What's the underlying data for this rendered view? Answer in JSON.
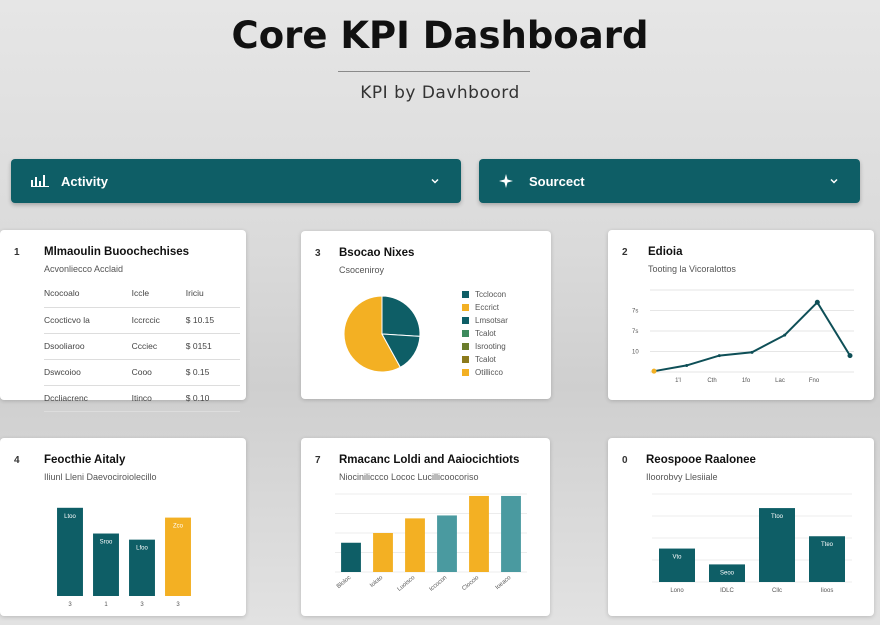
{
  "header": {
    "title": "Core KPI Dashboard",
    "subtitle": "KPI by Davhboord"
  },
  "filters": [
    {
      "label": "Activity",
      "icon": "bar-chart-icon"
    },
    {
      "label": "Sourcect",
      "icon": "sparkle-icon"
    }
  ],
  "colors": {
    "teal": "#0e5e66",
    "gold": "#f3b023",
    "teal_light": "#4a9aa0"
  },
  "cards": {
    "table_card": {
      "number": "1",
      "title": "Mlmaoulin Buoochechises",
      "subtitle": "Acvonliecco Acclaid",
      "columns": [
        "Ncocoalo",
        "Iccle",
        "Iriciu"
      ],
      "rows": [
        [
          "Ccocticvo la",
          "Iccrccic",
          "$ 10.15"
        ],
        [
          "Dsooliaroo",
          "Ccciec",
          "$ 0151"
        ],
        [
          "Dswcoioo",
          "Cooo",
          "$ 0.15"
        ],
        [
          "Dccliacrenc",
          "Itinco",
          "$ 0.10"
        ]
      ]
    },
    "pie_card": {
      "number": "3",
      "title": "Bsocao Nixes",
      "subtitle": "Csoceniroy",
      "legend": [
        {
          "label": "Tcclocon",
          "color": "#0e5e66"
        },
        {
          "label": "Eccrict",
          "color": "#f3b023"
        },
        {
          "label": "Lmsotsar",
          "color": "#0e5e66"
        },
        {
          "label": "Tcalot",
          "color": "#3d8a5c"
        },
        {
          "label": "Isrooting",
          "color": "#6b7d2c"
        },
        {
          "label": "Tcalot",
          "color": "#8c7a1c"
        },
        {
          "label": "Otillicco",
          "color": "#f3b023"
        }
      ]
    },
    "line_card": {
      "number": "2",
      "title": "Edioia",
      "subtitle": "Tooting la Vicoralottos"
    },
    "bar_card_1": {
      "number": "4",
      "title": "Feocthie Aitaly",
      "subtitle": "Iliunl Lleni Daevociroiolecillo"
    },
    "bar_card_2": {
      "number": "7",
      "title": "Rmacanc Loldi and Aaiocichtiots",
      "subtitle": "Niociniliccco Lococ Lucillicoocoriso"
    },
    "bar_card_3": {
      "number": "0",
      "title": "Reospooe Raalonee",
      "subtitle": "Iloorobvy Llesiiale"
    }
  },
  "chart_data": [
    {
      "type": "pie",
      "title": "Bsocao Nixes",
      "values": [
        58,
        26,
        16
      ],
      "colors": [
        "#f3b023",
        "#0e5e66",
        "#0e5e66"
      ]
    },
    {
      "type": "line",
      "title": "Edioia",
      "x": [
        1,
        2,
        3,
        4,
        5,
        6,
        7
      ],
      "y": [
        1,
        8,
        20,
        24,
        45,
        85,
        20
      ],
      "xticks": [
        "1'l",
        "Cth",
        "1fo",
        "Lac",
        "Fno"
      ],
      "yticks": [
        "",
        "7s",
        "7s",
        "10",
        ""
      ],
      "ylim": [
        0,
        100
      ]
    },
    {
      "type": "bar",
      "title": "Feocthie Aitaly",
      "categories": [
        "3",
        "1",
        "3",
        "3"
      ],
      "values": [
        72,
        51,
        46,
        64
      ],
      "colors": [
        "#0e5e66",
        "#0e5e66",
        "#0e5e66",
        "#f3b023"
      ],
      "data_labels": [
        "Ltoo",
        "Sroo",
        "Lfoo",
        "Zco"
      ],
      "ylim": [
        0,
        80
      ]
    },
    {
      "type": "bar",
      "title": "Rmacanc Loldi and Aaiocichtiots",
      "categories": [
        "Bloloc",
        "Ioloto",
        "Luoisco",
        "Iccocon",
        "Cloccio",
        "Ioeaco"
      ],
      "values": [
        30,
        40,
        55,
        58,
        78,
        78
      ],
      "colors": [
        "#0e5e66",
        "#f3b023",
        "#f3b023",
        "#4a9aa0",
        "#f3b023",
        "#4a9aa0"
      ],
      "ylim": [
        0,
        80
      ]
    },
    {
      "type": "bar",
      "title": "Reospooe Raalonee",
      "categories": [
        "Lono",
        "IDLC",
        "Cllc",
        "Iioos"
      ],
      "values": [
        38,
        20,
        84,
        52
      ],
      "colors": [
        "#0e5e66",
        "#0e5e66",
        "#0e5e66",
        "#0e5e66"
      ],
      "data_labels": [
        "Vto",
        "Seoo",
        "Ttoo",
        "Tteo"
      ],
      "ylim": [
        0,
        100
      ]
    }
  ]
}
